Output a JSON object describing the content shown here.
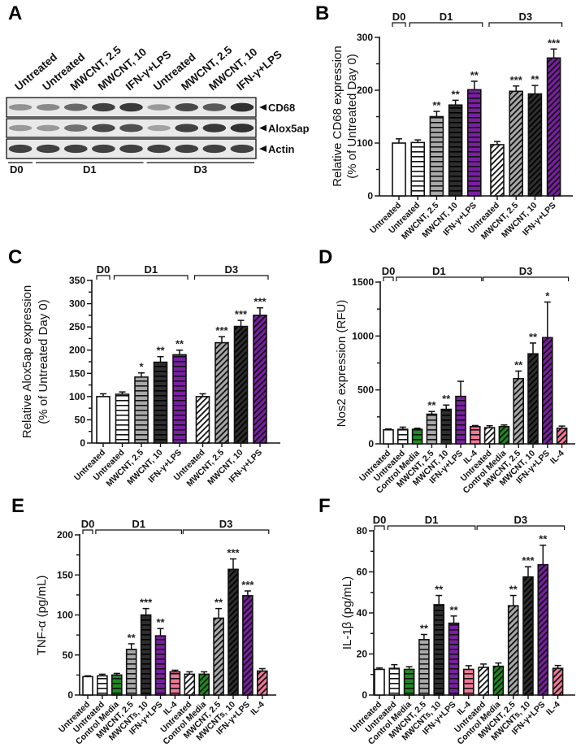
{
  "figure": {
    "panels": [
      "A",
      "B",
      "C",
      "D",
      "E",
      "F"
    ]
  },
  "western_blot": {
    "panel": "A",
    "lanes": [
      "Untreated",
      "Untreated",
      "MWCNT, 2.5",
      "MWCNT, 10",
      "IFN-γ+LPS",
      "Untreated",
      "MWCNT, 2.5",
      "MWCNT, 10",
      "IFN-γ+LPS"
    ],
    "groups": [
      {
        "label": "D0",
        "lanes": 1
      },
      {
        "label": "D1",
        "lanes": 4
      },
      {
        "label": "D3",
        "lanes": 4
      }
    ],
    "bands": [
      {
        "label": "CD68",
        "intensity": [
          0.35,
          0.4,
          0.6,
          0.85,
          0.9,
          0.3,
          0.8,
          0.7,
          0.95
        ]
      },
      {
        "label": "Alox5ap",
        "intensity": [
          0.3,
          0.3,
          0.55,
          0.8,
          0.75,
          0.25,
          0.85,
          0.9,
          0.95
        ]
      },
      {
        "label": "Actin",
        "intensity": [
          0.85,
          0.85,
          0.85,
          0.85,
          0.85,
          0.85,
          0.85,
          0.85,
          0.85
        ]
      }
    ]
  },
  "chart_data": [
    {
      "panel": "B",
      "type": "bar",
      "title": "",
      "ylabel": "Relative CD68 expression",
      "ylabel2": "(% of Untreated Day 0)",
      "xlabel": "",
      "ylim": [
        0,
        300
      ],
      "yticks": [
        0,
        100,
        200,
        300
      ],
      "minor_step": 50,
      "groups": [
        {
          "label": "D0",
          "span": [
            0,
            0
          ]
        },
        {
          "label": "D1",
          "span": [
            1,
            4
          ]
        },
        {
          "label": "D3",
          "span": [
            5,
            8
          ]
        }
      ],
      "categories": [
        "Untreated",
        "Untreated",
        "MWCNT, 2.5",
        "MWCNT, 10",
        "IFN-γ+LPS",
        "Untreated",
        "MWCNT, 2.5",
        "MWCNT, 10",
        "IFN-γ+LPS"
      ],
      "fills": [
        "white",
        "white",
        "gray",
        "dark",
        "purple",
        "white",
        "gray",
        "dark",
        "purple"
      ],
      "patterns": [
        "none",
        "hline",
        "hline",
        "hline",
        "hline",
        "diag",
        "diag",
        "diag",
        "diag"
      ],
      "values": [
        100,
        101,
        150,
        172,
        201,
        97,
        198,
        193,
        261
      ],
      "errors": [
        8,
        5,
        10,
        9,
        16,
        6,
        10,
        16,
        17
      ],
      "significance": [
        "",
        "",
        "**",
        "**",
        "**",
        "",
        "***",
        "**",
        "***"
      ]
    },
    {
      "panel": "C",
      "type": "bar",
      "title": "",
      "ylabel": "Relative Alox5ap expression",
      "ylabel2": "(% of Untreated Day 0)",
      "xlabel": "",
      "ylim": [
        0,
        350
      ],
      "yticks": [
        0,
        50,
        100,
        150,
        200,
        250,
        300,
        350
      ],
      "minor_step": 25,
      "groups": [
        {
          "label": "D0",
          "span": [
            0,
            0
          ]
        },
        {
          "label": "D1",
          "span": [
            1,
            4
          ]
        },
        {
          "label": "D3",
          "span": [
            5,
            8
          ]
        }
      ],
      "categories": [
        "Untreated",
        "Untreated",
        "MWCNT, 2.5",
        "MWCNT, 10",
        "IFN-γ+LPS",
        "Untreated",
        "MWCNT, 2.5",
        "MWCNT, 10",
        "IFN-γ+LPS"
      ],
      "fills": [
        "white",
        "white",
        "gray",
        "dark",
        "purple",
        "white",
        "gray",
        "dark",
        "purple"
      ],
      "patterns": [
        "none",
        "hline",
        "hline",
        "hline",
        "hline",
        "diag",
        "diag",
        "diag",
        "diag"
      ],
      "values": [
        100,
        105,
        142,
        174,
        190,
        100,
        216,
        251,
        275
      ],
      "errors": [
        6,
        5,
        9,
        12,
        10,
        6,
        13,
        13,
        16
      ],
      "significance": [
        "",
        "",
        "*",
        "**",
        "**",
        "",
        "***",
        "***",
        "***"
      ]
    },
    {
      "panel": "D",
      "type": "bar",
      "title": "",
      "ylabel": "Nos2 expression (RFU)",
      "ylabel2": "",
      "xlabel": "",
      "ylim": [
        0,
        1500
      ],
      "yticks": [
        0,
        500,
        1000,
        1500
      ],
      "minor_step": 250,
      "groups": [
        {
          "label": "D0",
          "span": [
            0,
            0
          ]
        },
        {
          "label": "D1",
          "span": [
            1,
            6
          ]
        },
        {
          "label": "D3",
          "span": [
            7,
            12
          ]
        }
      ],
      "categories": [
        "Untreated",
        "Untreated",
        "Control Media",
        "MWCNT, 2.5",
        "MWCNT, 10",
        "IFN-γ+LPS",
        "IL-4",
        "Untreated",
        "Control Media",
        "MWCNT, 2.5",
        "MWCNT, 10",
        "IFN-γ+LPS",
        "IL-4"
      ],
      "fills": [
        "white",
        "white",
        "green",
        "gray",
        "dark",
        "purple",
        "pink",
        "white",
        "green",
        "gray",
        "dark",
        "purple",
        "pink"
      ],
      "patterns": [
        "none",
        "hline",
        "hline",
        "hline",
        "hline",
        "hline",
        "hline",
        "diag",
        "diag",
        "diag",
        "diag",
        "diag",
        "diag"
      ],
      "values": [
        130,
        135,
        135,
        275,
        320,
        440,
        160,
        150,
        160,
        605,
        835,
        985,
        145
      ],
      "errors": [
        8,
        20,
        10,
        25,
        40,
        140,
        10,
        18,
        15,
        70,
        100,
        330,
        20
      ],
      "significance": [
        "",
        "",
        "",
        "**",
        "**",
        "",
        "",
        "",
        "",
        "**",
        "**",
        "*",
        ""
      ]
    },
    {
      "panel": "E",
      "type": "bar",
      "title": "",
      "ylabel": "TNF-α (pg/mL)",
      "ylabel2": "",
      "xlabel": "",
      "ylim": [
        0,
        200
      ],
      "yticks": [
        0,
        50,
        100,
        150,
        200
      ],
      "minor_step": 25,
      "groups": [
        {
          "label": "D0",
          "span": [
            0,
            0
          ]
        },
        {
          "label": "D1",
          "span": [
            1,
            6
          ]
        },
        {
          "label": "D3",
          "span": [
            7,
            12
          ]
        }
      ],
      "categories": [
        "Untreated",
        "Untreated",
        "Control Media",
        "MWCNT, 2.5",
        "MWCNTs, 10",
        "IFN-γ+LPS",
        "IL-4",
        "Untreated",
        "Control Media",
        "MWCNT, 2.5",
        "MWCNTs, 10",
        "IFN-γ+LPS",
        "IL-4"
      ],
      "fills": [
        "white",
        "white",
        "green",
        "gray",
        "dark",
        "purple",
        "pink",
        "white",
        "green",
        "gray",
        "dark",
        "purple",
        "pink"
      ],
      "patterns": [
        "none",
        "hline",
        "hline",
        "hline",
        "hline",
        "hline",
        "hline",
        "diag",
        "diag",
        "diag",
        "diag",
        "diag",
        "diag"
      ],
      "values": [
        23,
        24,
        25,
        57,
        100,
        74,
        29,
        26,
        26,
        96,
        157,
        124,
        30
      ],
      "errors": [
        1,
        2,
        2,
        7,
        8,
        9,
        2,
        3,
        3,
        12,
        13,
        6,
        3
      ],
      "significance": [
        "",
        "",
        "",
        "**",
        "***",
        "**",
        "",
        "",
        "",
        "**",
        "***",
        "***",
        ""
      ]
    },
    {
      "panel": "F",
      "type": "bar",
      "title": "",
      "ylabel": "IL-1β (pg/mL)",
      "ylabel2": "",
      "xlabel": "",
      "ylim": [
        0,
        80
      ],
      "yticks": [
        0,
        20,
        40,
        60,
        80
      ],
      "minor_step": 10,
      "groups": [
        {
          "label": "D0",
          "span": [
            0,
            0
          ]
        },
        {
          "label": "D1",
          "span": [
            1,
            6
          ]
        },
        {
          "label": "D3",
          "span": [
            7,
            12
          ]
        }
      ],
      "categories": [
        "Untreated",
        "Untreated",
        "Control Media",
        "MWCNT, 2.5",
        "MWCNTs, 10",
        "IFN-γ+LPS",
        "IL-4",
        "Untreated",
        "Control Media",
        "MWCNT, 2.5",
        "MWCNTs, 10",
        "IFN-γ+LPS",
        "IL-4"
      ],
      "fills": [
        "white",
        "white",
        "green",
        "gray",
        "dark",
        "purple",
        "pink",
        "white",
        "green",
        "gray",
        "dark",
        "purple",
        "pink"
      ],
      "patterns": [
        "none",
        "hline",
        "hline",
        "hline",
        "hline",
        "hline",
        "hline",
        "diag",
        "diag",
        "diag",
        "diag",
        "diag",
        "diag"
      ],
      "values": [
        12.5,
        13,
        12.5,
        27,
        44,
        35,
        12.5,
        13.5,
        14,
        43.5,
        57.5,
        63.5,
        13
      ],
      "errors": [
        0.7,
        1.8,
        1.3,
        2.5,
        4.5,
        3.5,
        1.8,
        1.6,
        1.6,
        5,
        5,
        9.5,
        1.4
      ],
      "significance": [
        "",
        "",
        "",
        "**",
        "**",
        "**",
        "",
        "",
        "",
        "**",
        "***",
        "**",
        ""
      ]
    }
  ],
  "colors": {
    "white": "#ffffff",
    "gray": "#a9a9a9",
    "dark": "#2e2e2e",
    "purple": "#7a1fa2",
    "green": "#1f8a1f",
    "pink": "#f07898",
    "stroke": "#111111"
  }
}
